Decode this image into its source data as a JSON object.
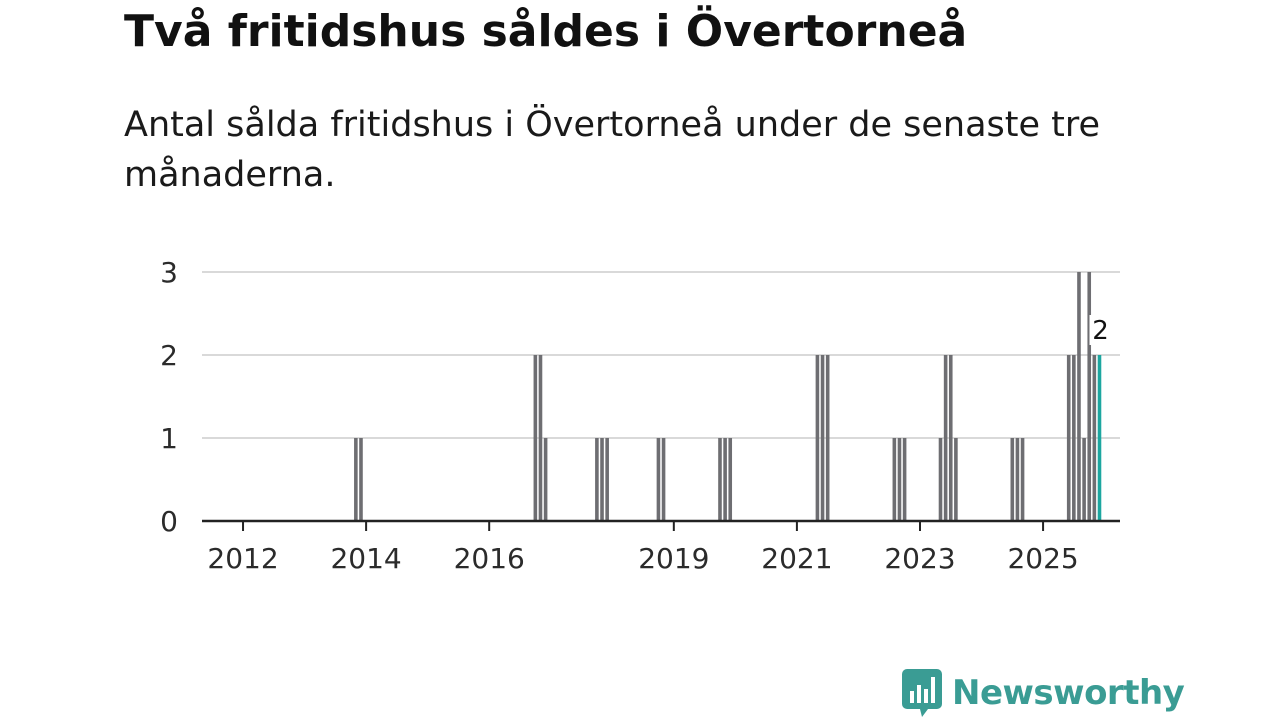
{
  "header": {
    "title": "Två fritidshus såldes i Övertorneå",
    "subtitle": "Antal sålda fritidshus i Övertorneå under de senaste tre månaderna."
  },
  "brand": {
    "name": "Newsworthy",
    "icon": "newsworthy-logo-icon",
    "color": "#3a9c94"
  },
  "colors": {
    "bar": "#6e6e72",
    "highlight": "#1ca6a0",
    "grid": "#d9d9d9",
    "axis": "#222222"
  },
  "chart_data": {
    "type": "bar",
    "title": "Två fritidshus såldes i Övertorneå",
    "subtitle": "Antal sålda fritidshus i Övertorneå under de senaste tre månaderna.",
    "xlabel": "",
    "ylabel": "",
    "ylim": [
      0,
      3
    ],
    "y_ticks": [
      0,
      1,
      2,
      3
    ],
    "x_range": [
      "2011-05",
      "2026-04"
    ],
    "x_ticks": [
      {
        "date": "2012-01",
        "label": "2012"
      },
      {
        "date": "2014-01",
        "label": "2014"
      },
      {
        "date": "2016-01",
        "label": "2016"
      },
      {
        "date": "2019-01",
        "label": "2019"
      },
      {
        "date": "2021-01",
        "label": "2021"
      },
      {
        "date": "2023-01",
        "label": "2023"
      },
      {
        "date": "2025-01",
        "label": "2025"
      }
    ],
    "grid": true,
    "series": [
      {
        "x": [
          "2013-11",
          "2013-12",
          "2016-10",
          "2016-11",
          "2016-12",
          "2017-10",
          "2017-11",
          "2017-12",
          "2018-10",
          "2018-11",
          "2019-10",
          "2019-11",
          "2019-12",
          "2021-05",
          "2021-06",
          "2021-07",
          "2022-08",
          "2022-09",
          "2022-10",
          "2023-05",
          "2023-06",
          "2023-07",
          "2023-08",
          "2024-07",
          "2024-08",
          "2024-09",
          "2025-06",
          "2025-07",
          "2025-08",
          "2025-09",
          "2025-10",
          "2025-11",
          "2025-12"
        ],
        "values": [
          1,
          1,
          2,
          2,
          1,
          1,
          1,
          1,
          1,
          1,
          1,
          1,
          1,
          2,
          2,
          2,
          1,
          1,
          1,
          1,
          2,
          2,
          1,
          1,
          1,
          1,
          2,
          2,
          3,
          1,
          3,
          2,
          2
        ]
      }
    ],
    "highlight": {
      "date": "2025-12",
      "value": 2,
      "label": "2"
    }
  }
}
